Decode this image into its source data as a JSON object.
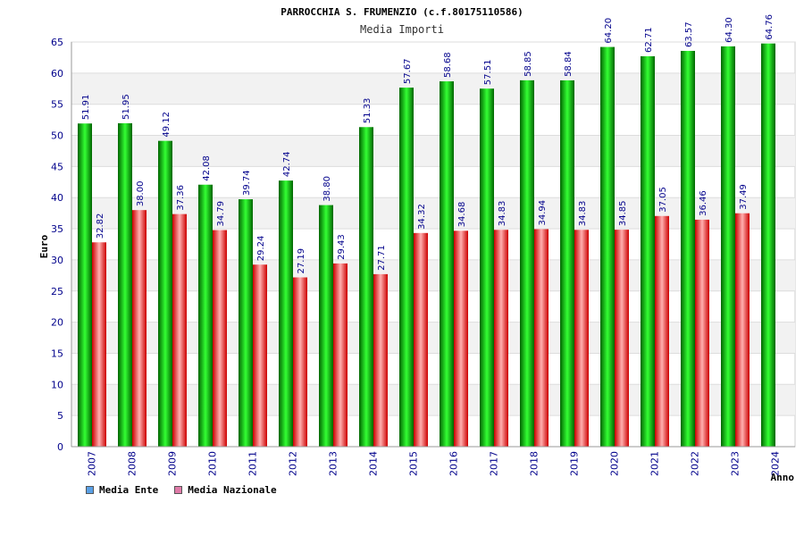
{
  "chart_data": {
    "type": "bar",
    "title": "PARROCCHIA S. FRUMENZIO (c.f.80175110586)",
    "subtitle": "Media Importi",
    "xlabel": "Anno",
    "ylabel": "Euro",
    "ylim": [
      0,
      65
    ],
    "yticks": [
      0,
      5,
      10,
      15,
      20,
      25,
      30,
      35,
      40,
      45,
      50,
      55,
      60,
      65
    ],
    "categories": [
      "2007",
      "2008",
      "2009",
      "2010",
      "2011",
      "2012",
      "2013",
      "2014",
      "2015",
      "2016",
      "2017",
      "2018",
      "2019",
      "2020",
      "2021",
      "2022",
      "2023",
      "2024"
    ],
    "series": [
      {
        "name": "Media Ente",
        "values": [
          51.91,
          51.95,
          49.12,
          42.08,
          39.74,
          42.74,
          38.8,
          51.33,
          57.67,
          58.68,
          57.51,
          58.85,
          58.84,
          64.2,
          62.71,
          63.57,
          64.3,
          64.76
        ],
        "labels": [
          "51.91",
          "51.95",
          "49.12",
          "42.08",
          "39.74",
          "42.74",
          "38.80",
          "51.33",
          "57.67",
          "58.68",
          "57.51",
          "58.85",
          "58.84",
          "64.20",
          "62.71",
          "63.57",
          "64.30",
          "64.76"
        ]
      },
      {
        "name": "Media Nazionale",
        "values": [
          32.82,
          38.0,
          37.36,
          34.79,
          29.24,
          27.19,
          29.43,
          27.71,
          34.32,
          34.68,
          34.83,
          34.94,
          34.83,
          34.85,
          37.05,
          36.46,
          37.49,
          null
        ],
        "labels": [
          "32.82",
          "38.00",
          "37.36",
          "34.79",
          "29.24",
          "27.19",
          "29.43",
          "27.71",
          "34.32",
          "34.68",
          "34.83",
          "34.94",
          "34.83",
          "34.85",
          "37.05",
          "36.46",
          "37.49",
          null
        ]
      }
    ],
    "legend_position": "bottom-left",
    "grid": true
  },
  "legend": {
    "items": [
      {
        "label": "Media Ente",
        "color": "#5aa0e6"
      },
      {
        "label": "Media Nazionale",
        "color": "#e07aa8"
      }
    ]
  },
  "colors": {
    "ente_dark": "#006400",
    "ente_light": "#33ff33",
    "naz_dark": "#cc0000",
    "naz_light": "#ffb0b0",
    "axis_text": "#00008b",
    "value_text": "#00008b",
    "grid_band": "#f2f2f2"
  }
}
